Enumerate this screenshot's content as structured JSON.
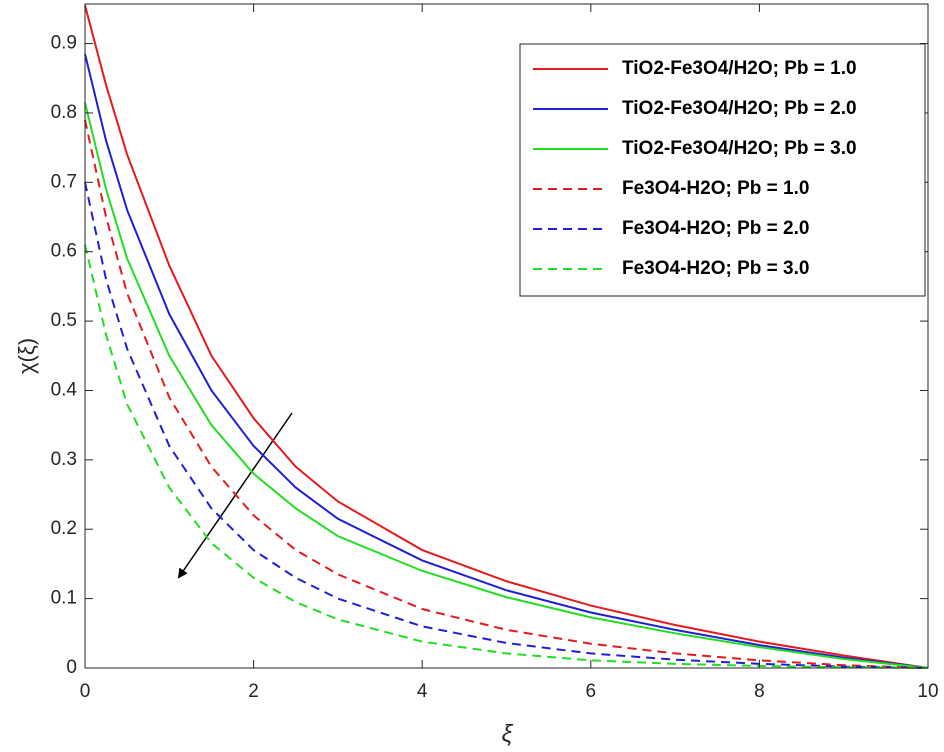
{
  "chart_data": {
    "type": "line",
    "xlabel": "ξ",
    "ylabel": "χ(ξ)",
    "x": [
      0,
      0.25,
      0.5,
      1,
      1.5,
      2,
      2.5,
      3,
      4,
      5,
      6,
      7,
      8,
      9,
      10
    ],
    "series": [
      {
        "name": "TiO2-Fe3O4/H2O; Pb = 1.0",
        "color": "#e41a1c",
        "dash": false,
        "values": [
          0.955,
          0.84,
          0.74,
          0.58,
          0.45,
          0.36,
          0.29,
          0.24,
          0.17,
          0.125,
          0.09,
          0.062,
          0.038,
          0.018,
          0
        ]
      },
      {
        "name": "TiO2-Fe3O4/H2O; Pb = 2.0",
        "color": "#1f1fd6",
        "dash": false,
        "values": [
          0.885,
          0.76,
          0.66,
          0.51,
          0.4,
          0.32,
          0.26,
          0.215,
          0.155,
          0.112,
          0.08,
          0.055,
          0.033,
          0.015,
          0
        ]
      },
      {
        "name": "TiO2-Fe3O4/H2O; Pb = 3.0",
        "color": "#22dd22",
        "dash": false,
        "values": [
          0.815,
          0.69,
          0.59,
          0.45,
          0.35,
          0.28,
          0.23,
          0.19,
          0.14,
          0.102,
          0.073,
          0.05,
          0.03,
          0.013,
          0
        ]
      },
      {
        "name": "Fe3O4-H2O; Pb = 1.0",
        "color": "#e41a1c",
        "dash": true,
        "values": [
          0.79,
          0.65,
          0.54,
          0.39,
          0.29,
          0.22,
          0.17,
          0.135,
          0.085,
          0.055,
          0.035,
          0.021,
          0.011,
          0.004,
          0
        ]
      },
      {
        "name": "Fe3O4-H2O; Pb = 2.0",
        "color": "#1f1fd6",
        "dash": true,
        "values": [
          0.7,
          0.56,
          0.46,
          0.32,
          0.23,
          0.17,
          0.13,
          0.1,
          0.06,
          0.036,
          0.021,
          0.012,
          0.006,
          0.002,
          0
        ]
      },
      {
        "name": "Fe3O4-H2O; Pb = 3.0",
        "color": "#22dd22",
        "dash": true,
        "values": [
          0.61,
          0.48,
          0.38,
          0.26,
          0.18,
          0.13,
          0.095,
          0.07,
          0.038,
          0.021,
          0.011,
          0.006,
          0.003,
          0.001,
          0
        ]
      }
    ],
    "xlim": [
      0,
      10
    ],
    "xticks": [
      0,
      2,
      4,
      6,
      8,
      10
    ],
    "ylim": [
      0,
      0.957
    ],
    "yticks": [
      0,
      0.1,
      0.2,
      0.3,
      0.4,
      0.5,
      0.6,
      0.7,
      0.8,
      0.9
    ],
    "grid": false,
    "legend": "upper right"
  }
}
